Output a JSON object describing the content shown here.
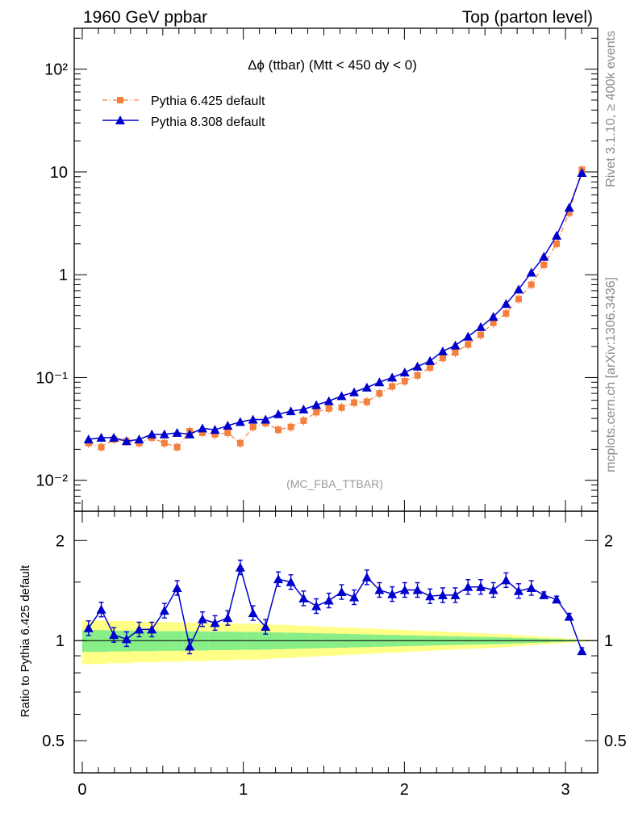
{
  "header": {
    "left": "1960 GeV ppbar",
    "right": "Top (parton level)"
  },
  "side_notes": {
    "rivet": "Rivet 3.1.10, ≥ 400k events",
    "source": "mcplots.cern.ch [arXiv:1306.3436]"
  },
  "colors": {
    "pythia6": "#f47f3c",
    "pythia8": "#0000cc",
    "band_green": "#88ee88",
    "band_yellow": "#ffff88"
  },
  "chart_data": [
    {
      "type": "line",
      "title": "Δϕ (ttbar) (Mtt < 450 dy < 0)",
      "annotation": "(MC_FBA_TTBAR)",
      "yscale": "log",
      "ylim": [
        0.005,
        250
      ],
      "xlim": [
        -0.05,
        3.2
      ],
      "yticks": [
        "10⁻²",
        "10⁻¹",
        "1",
        "10",
        "10²"
      ],
      "legend_position": "top-left",
      "x": [
        0.039,
        0.118,
        0.196,
        0.275,
        0.353,
        0.432,
        0.51,
        0.589,
        0.667,
        0.746,
        0.824,
        0.903,
        0.981,
        1.06,
        1.138,
        1.217,
        1.295,
        1.374,
        1.453,
        1.531,
        1.61,
        1.688,
        1.767,
        1.845,
        1.924,
        2.002,
        2.081,
        2.159,
        2.238,
        2.316,
        2.395,
        2.474,
        2.552,
        2.631,
        2.709,
        2.788,
        2.866,
        2.945,
        3.023,
        3.102
      ],
      "series": [
        {
          "name": "Pythia 6.425 default",
          "marker": "square",
          "values": [
            0.023,
            0.021,
            0.025,
            0.024,
            0.023,
            0.026,
            0.023,
            0.021,
            0.03,
            0.029,
            0.028,
            0.029,
            0.023,
            0.033,
            0.036,
            0.031,
            0.033,
            0.038,
            0.046,
            0.05,
            0.051,
            0.057,
            0.058,
            0.07,
            0.082,
            0.092,
            0.105,
            0.125,
            0.155,
            0.175,
            0.21,
            0.26,
            0.34,
            0.42,
            0.58,
            0.8,
            1.25,
            2.0,
            4.0,
            10.5
          ]
        },
        {
          "name": "Pythia 8.308 default",
          "marker": "triangle",
          "values": [
            0.025,
            0.026,
            0.026,
            0.024,
            0.025,
            0.028,
            0.028,
            0.029,
            0.028,
            0.032,
            0.031,
            0.034,
            0.037,
            0.039,
            0.039,
            0.044,
            0.047,
            0.049,
            0.054,
            0.059,
            0.066,
            0.072,
            0.08,
            0.09,
            0.1,
            0.112,
            0.128,
            0.145,
            0.18,
            0.205,
            0.25,
            0.31,
            0.39,
            0.52,
            0.72,
            1.05,
            1.5,
            2.4,
            4.5,
            9.8
          ]
        }
      ]
    },
    {
      "type": "line",
      "ylabel": "Ratio to Pythia 6.425 default",
      "yscale": "log",
      "ylim": [
        0.4,
        2.45
      ],
      "xlim": [
        -0.05,
        3.2
      ],
      "yticks": [
        "0.5",
        "1",
        "2"
      ],
      "xticks": [
        "0",
        "1",
        "2",
        "3"
      ],
      "x": [
        0.039,
        0.118,
        0.196,
        0.275,
        0.353,
        0.432,
        0.51,
        0.589,
        0.667,
        0.746,
        0.824,
        0.903,
        0.981,
        1.06,
        1.138,
        1.217,
        1.295,
        1.374,
        1.453,
        1.531,
        1.61,
        1.688,
        1.767,
        1.845,
        1.924,
        2.002,
        2.081,
        2.159,
        2.238,
        2.316,
        2.395,
        2.474,
        2.552,
        2.631,
        2.709,
        2.788,
        2.866,
        2.945,
        3.023,
        3.102
      ],
      "series": [
        {
          "name": "Pythia 8.308 default",
          "values": [
            1.09,
            1.24,
            1.04,
            1.01,
            1.08,
            1.08,
            1.23,
            1.44,
            0.96,
            1.16,
            1.13,
            1.17,
            1.66,
            1.21,
            1.1,
            1.53,
            1.5,
            1.34,
            1.27,
            1.32,
            1.4,
            1.35,
            1.55,
            1.42,
            1.38,
            1.42,
            1.42,
            1.36,
            1.37,
            1.37,
            1.45,
            1.45,
            1.42,
            1.52,
            1.41,
            1.44,
            1.37,
            1.33,
            1.18,
            0.93
          ]
        }
      ],
      "band_inner_halfwidth": [
        0.075,
        0.075,
        0.072,
        0.072,
        0.07,
        0.07,
        0.068,
        0.068,
        0.066,
        0.066,
        0.064,
        0.064,
        0.062,
        0.062,
        0.06,
        0.058,
        0.056,
        0.054,
        0.052,
        0.05,
        0.048,
        0.046,
        0.044,
        0.042,
        0.04,
        0.038,
        0.036,
        0.034,
        0.032,
        0.03,
        0.028,
        0.026,
        0.024,
        0.022,
        0.019,
        0.016,
        0.013,
        0.01,
        0.007,
        0.004
      ],
      "band_outer_halfwidth": [
        0.15,
        0.15,
        0.145,
        0.145,
        0.14,
        0.14,
        0.136,
        0.136,
        0.132,
        0.132,
        0.128,
        0.128,
        0.124,
        0.124,
        0.12,
        0.116,
        0.112,
        0.108,
        0.104,
        0.1,
        0.096,
        0.092,
        0.088,
        0.084,
        0.08,
        0.076,
        0.072,
        0.068,
        0.064,
        0.06,
        0.056,
        0.052,
        0.048,
        0.044,
        0.038,
        0.032,
        0.026,
        0.02,
        0.014,
        0.008
      ]
    }
  ]
}
